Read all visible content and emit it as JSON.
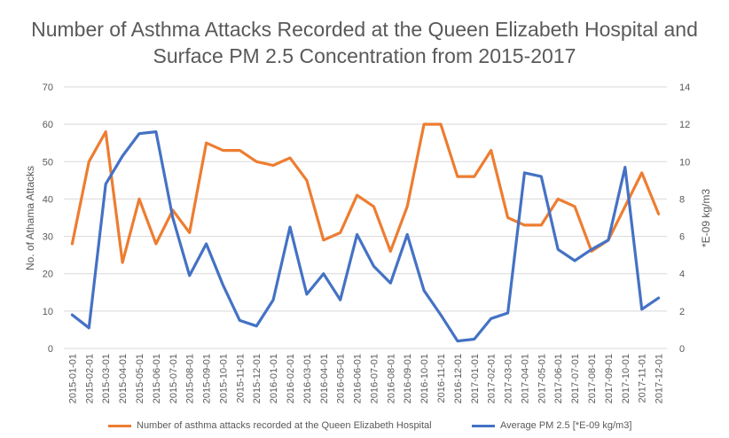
{
  "chart_data": {
    "type": "line",
    "title": "Number of Asthma Attacks Recorded at the Queen Elizabeth Hospital and Surface PM 2.5 Concentration from 2015-2017",
    "categories": [
      "2015-01-01",
      "2015-02-01",
      "2015-03-01",
      "2015-04-01",
      "2015-05-01",
      "2015-06-01",
      "2015-07-01",
      "2015-08-01",
      "2015-09-01",
      "2015-10-01",
      "2015-11-01",
      "2015-12-01",
      "2016-01-01",
      "2016-02-01",
      "2016-03-01",
      "2016-04-01",
      "2016-05-01",
      "2016-06-01",
      "2016-07-01",
      "2016-08-01",
      "2016-09-01",
      "2016-10-01",
      "2016-11-01",
      "2016-12-01",
      "2017-01-01",
      "2017-02-01",
      "2017-03-01",
      "2017-04-01",
      "2017-05-01",
      "2017-06-01",
      "2017-07-01",
      "2017-08-01",
      "2017-09-01",
      "2017-10-01",
      "2017-11-01",
      "2017-12-01"
    ],
    "ylabel": "No. of Athama Attacks",
    "y2label": "*E-09 kg/m3",
    "ylim": [
      0,
      70
    ],
    "y2lim": [
      0,
      14
    ],
    "yticks": [
      0,
      10,
      20,
      30,
      40,
      50,
      60,
      70
    ],
    "y2ticks": [
      0,
      2,
      4,
      6,
      8,
      10,
      12,
      14
    ],
    "grid": true,
    "legend_position": "bottom",
    "series": [
      {
        "name": "Number of asthma attacks recorded at the Queen Elizabeth Hospital",
        "axis": "left",
        "color": "#ED7D31",
        "values": [
          28,
          50,
          58,
          23,
          40,
          28,
          37,
          31,
          55,
          53,
          53,
          50,
          49,
          51,
          45,
          29,
          31,
          41,
          38,
          26,
          38,
          60,
          60,
          46,
          46,
          53,
          35,
          33,
          33,
          40,
          38,
          26,
          29,
          38,
          47,
          36
        ]
      },
      {
        "name": "Average PM 2.5 [*E-09 kg/m3]",
        "axis": "right",
        "color": "#4472C4",
        "values": [
          1.8,
          1.1,
          8.8,
          10.3,
          11.5,
          11.6,
          7.0,
          3.9,
          5.6,
          3.4,
          1.5,
          1.2,
          2.6,
          6.5,
          2.9,
          4.0,
          2.6,
          6.1,
          4.4,
          3.5,
          6.1,
          3.1,
          1.8,
          0.4,
          0.5,
          1.6,
          1.9,
          9.4,
          9.2,
          5.3,
          4.7,
          5.3,
          5.8,
          9.7,
          2.1,
          2.7
        ]
      }
    ]
  }
}
